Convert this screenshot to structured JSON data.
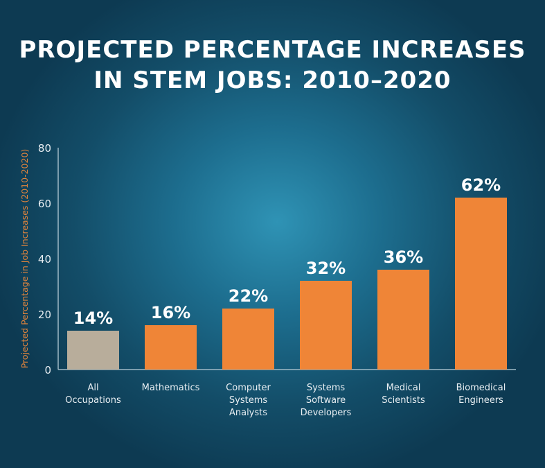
{
  "chart_data": {
    "type": "bar",
    "title": [
      "PROJECTED PERCENTAGE INCREASES",
      "IN STEM JOBS: 2010–2020"
    ],
    "ylabel": "Projected Percentage in Job Increases (2010-2020)",
    "xlabel": "",
    "ylim": [
      0,
      80
    ],
    "yticks": [
      0,
      20,
      40,
      60,
      80
    ],
    "grid": false,
    "categories": [
      [
        "All",
        "Occupations"
      ],
      [
        "Mathematics"
      ],
      [
        "Computer",
        "Systems",
        "Analysts"
      ],
      [
        "Systems",
        "Software",
        "Developers"
      ],
      [
        "Medical",
        "Scientists"
      ],
      [
        "Biomedical",
        "Engineers"
      ]
    ],
    "values": [
      14,
      16,
      22,
      32,
      36,
      62
    ],
    "data_labels": [
      "14%",
      "16%",
      "22%",
      "32%",
      "36%",
      "62%"
    ],
    "colors": [
      "#b8ad9b",
      "#ef8537",
      "#ef8537",
      "#ef8537",
      "#ef8537",
      "#ef8537"
    ],
    "axis_label_color": "#e0843c"
  }
}
